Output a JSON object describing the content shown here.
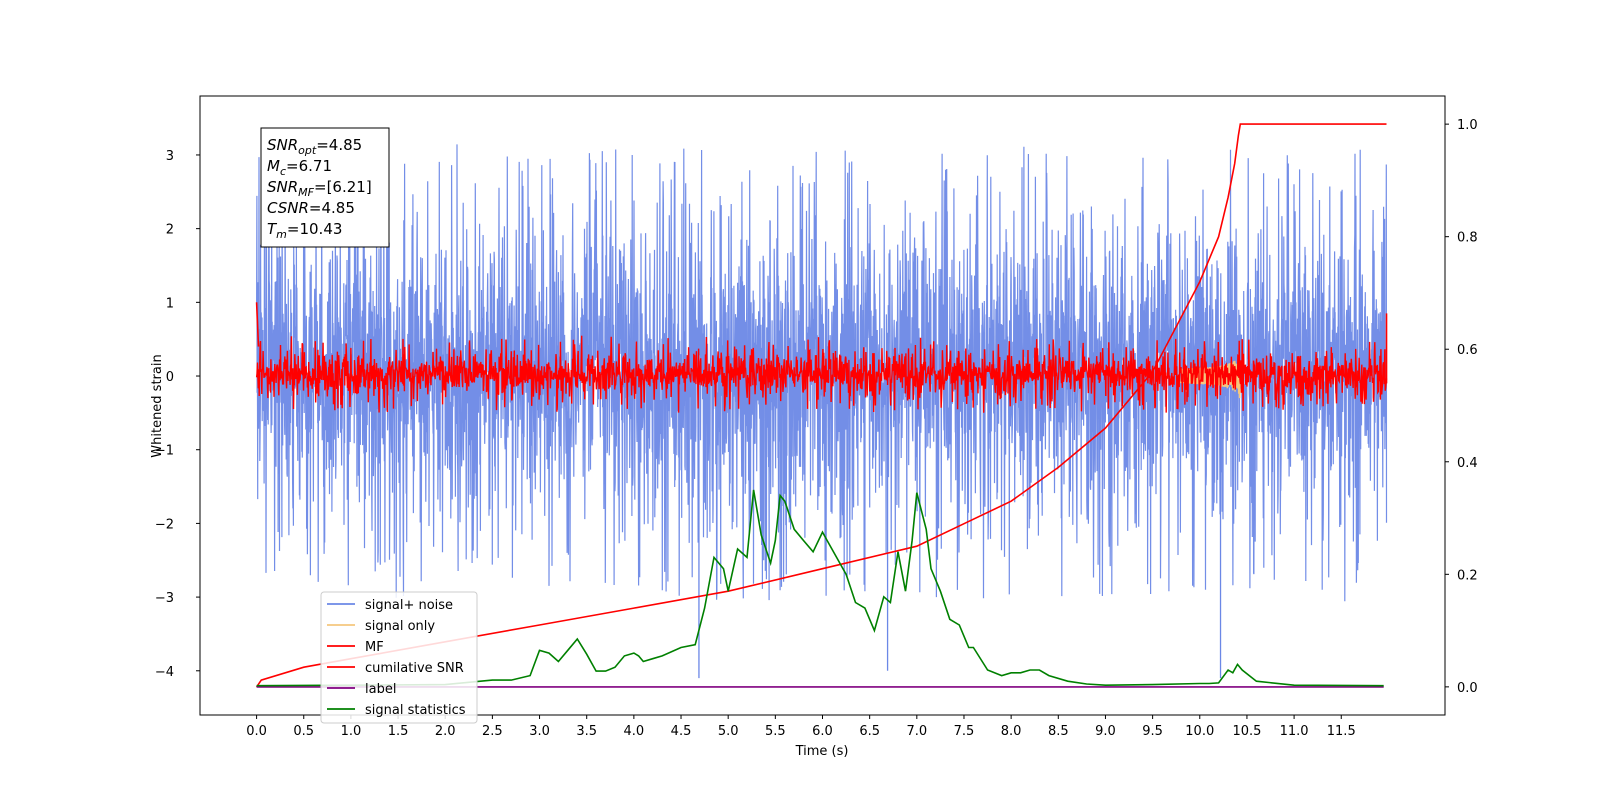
{
  "chart_data": {
    "type": "line",
    "xlabel": "Time (s)",
    "ylabel": "Whitened strain",
    "xlim": [
      -0.6,
      12.6
    ],
    "ylim_left": [
      -4.6,
      3.8
    ],
    "ylim_right": [
      -0.05,
      1.05
    ],
    "x_ticks": [
      "0.0",
      "0.5",
      "1.0",
      "1.5",
      "2.0",
      "2.5",
      "3.0",
      "3.5",
      "4.0",
      "4.5",
      "5.0",
      "5.5",
      "6.0",
      "6.5",
      "7.0",
      "7.5",
      "8.0",
      "8.5",
      "9.0",
      "9.5",
      "10.0",
      "10.5",
      "11.0",
      "11.5"
    ],
    "x_tick_values": [
      0.0,
      0.5,
      1.0,
      1.5,
      2.0,
      2.5,
      3.0,
      3.5,
      4.0,
      4.5,
      5.0,
      5.5,
      6.0,
      6.5,
      7.0,
      7.5,
      8.0,
      8.5,
      9.0,
      9.5,
      10.0,
      10.5,
      11.0,
      11.5
    ],
    "y_ticks_left": [
      "3",
      "2",
      "1",
      "0",
      "−1",
      "−2",
      "−3",
      "−4"
    ],
    "y_tick_values_left": [
      3,
      2,
      1,
      0,
      -1,
      -2,
      -3,
      -4
    ],
    "y_ticks_right": [
      "1.0",
      "0.8",
      "0.6",
      "0.4",
      "0.2",
      "0.0"
    ],
    "y_tick_values_right": [
      1.0,
      0.8,
      0.6,
      0.4,
      0.2,
      0.0
    ],
    "annotation": [
      {
        "main": "SNR",
        "sub": "opt",
        "rest": "=4.85"
      },
      {
        "main": "M",
        "sub": "c",
        "rest": "=6.71"
      },
      {
        "main": "SNR",
        "sub": "MF",
        "rest": "=[6.21]"
      },
      {
        "main": "CSNR",
        "sub": "",
        "rest": "=4.85"
      },
      {
        "main": "T",
        "sub": "m",
        "rest": "=10.43"
      }
    ],
    "legend": [
      {
        "label": "signal+ noise",
        "color": "#6b88e6"
      },
      {
        "label": "signal only",
        "color": "#f5c77e"
      },
      {
        "label": "MF",
        "color": "#ff0000"
      },
      {
        "label": "cumilative SNR",
        "color": "#ff0000"
      },
      {
        "label": "label",
        "color": "#800080"
      },
      {
        "label": "signal statistics",
        "color": "#008000"
      }
    ],
    "series": [
      {
        "name": "signal+ noise",
        "axis": "left",
        "color": "#6b88e6",
        "kind": "noise",
        "x_range": [
          0,
          11.98
        ],
        "band_core": [
          -1.4,
          1.5
        ],
        "spike_extent": [
          -3.3,
          3.45
        ]
      },
      {
        "name": "signal only",
        "axis": "left",
        "color": "#f5c77e",
        "kind": "chirp",
        "x_range": [
          9.8,
          10.43
        ],
        "peak": 0.6
      },
      {
        "name": "MF",
        "axis": "left",
        "color": "#ff0000",
        "kind": "noise",
        "x_range": [
          0,
          11.98
        ],
        "band_core": [
          -0.2,
          0.25
        ],
        "spike_extent": [
          -0.5,
          0.6
        ]
      },
      {
        "name": "cumilative SNR",
        "axis": "right",
        "x": [
          0.0,
          0.05,
          0.5,
          1.0,
          2.0,
          3.0,
          4.0,
          5.0,
          6.0,
          7.0,
          7.5,
          8.0,
          8.5,
          9.0,
          9.5,
          10.0,
          10.2,
          10.3,
          10.37,
          10.41,
          10.43,
          11.98
        ],
        "y": [
          0.0,
          0.012,
          0.035,
          0.05,
          0.08,
          0.11,
          0.14,
          0.17,
          0.21,
          0.25,
          0.29,
          0.33,
          0.39,
          0.46,
          0.56,
          0.72,
          0.8,
          0.87,
          0.93,
          0.98,
          1.0,
          1.0
        ]
      },
      {
        "name": "label",
        "axis": "right",
        "color": "#800080",
        "x": [
          0,
          11.95
        ],
        "y": [
          0.0,
          0.0
        ]
      },
      {
        "name": "signal statistics",
        "axis": "right",
        "color": "#008000",
        "x": [
          0.0,
          1.0,
          2.0,
          2.5,
          2.7,
          2.9,
          3.0,
          3.1,
          3.2,
          3.3,
          3.4,
          3.5,
          3.6,
          3.7,
          3.8,
          3.9,
          4.0,
          4.05,
          4.1,
          4.2,
          4.3,
          4.5,
          4.65,
          4.75,
          4.85,
          4.95,
          5.0,
          5.1,
          5.2,
          5.27,
          5.35,
          5.45,
          5.5,
          5.55,
          5.6,
          5.7,
          5.8,
          5.9,
          6.0,
          6.05,
          6.15,
          6.25,
          6.35,
          6.45,
          6.55,
          6.65,
          6.72,
          6.8,
          6.88,
          6.95,
          7.0,
          7.1,
          7.15,
          7.25,
          7.35,
          7.45,
          7.55,
          7.6,
          7.75,
          7.9,
          8.0,
          8.1,
          8.2,
          8.3,
          8.4,
          8.6,
          8.8,
          9.0,
          9.5,
          10.0,
          10.1,
          10.2,
          10.3,
          10.35,
          10.4,
          10.45,
          10.6,
          11.0,
          11.95
        ],
        "y": [
          0.002,
          0.003,
          0.004,
          0.012,
          0.012,
          0.02,
          0.065,
          0.06,
          0.045,
          0.065,
          0.085,
          0.058,
          0.028,
          0.028,
          0.035,
          0.055,
          0.06,
          0.055,
          0.045,
          0.05,
          0.055,
          0.07,
          0.075,
          0.14,
          0.23,
          0.21,
          0.17,
          0.245,
          0.23,
          0.35,
          0.27,
          0.22,
          0.26,
          0.34,
          0.33,
          0.28,
          0.26,
          0.24,
          0.275,
          0.26,
          0.23,
          0.2,
          0.15,
          0.14,
          0.1,
          0.16,
          0.15,
          0.24,
          0.17,
          0.26,
          0.345,
          0.28,
          0.21,
          0.17,
          0.12,
          0.11,
          0.07,
          0.07,
          0.03,
          0.02,
          0.025,
          0.025,
          0.03,
          0.03,
          0.02,
          0.01,
          0.005,
          0.003,
          0.004,
          0.006,
          0.006,
          0.007,
          0.03,
          0.025,
          0.04,
          0.03,
          0.01,
          0.003,
          0.002
        ]
      }
    ],
    "spikes": [
      {
        "series": "signal+ noise",
        "x": 4.69,
        "y": -4.1
      },
      {
        "series": "signal+ noise",
        "x": 6.69,
        "y": -4.0
      },
      {
        "series": "signal+ noise",
        "x": 10.22,
        "y": -4.1
      }
    ]
  }
}
